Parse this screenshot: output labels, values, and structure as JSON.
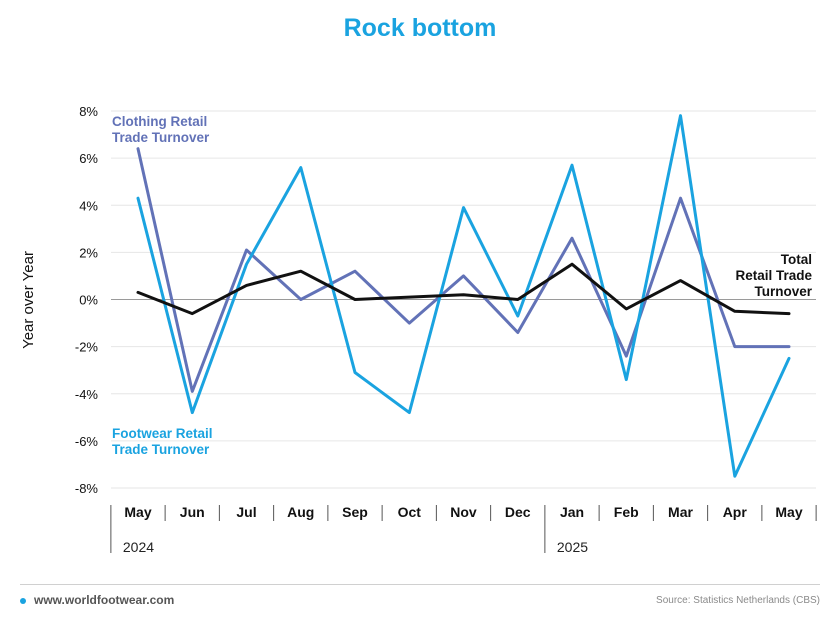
{
  "title": "Rock bottom",
  "footer": {
    "site": "www.worldfootwear.com",
    "source": "Source: Statistics Netherlands (CBS)"
  },
  "colors": {
    "title": "#1aa3e0",
    "clothing": "#6272b7",
    "footwear": "#1aa3e0",
    "total": "#111111",
    "gridline": "#e6e6e6",
    "zeroline": "#9a9a9a",
    "footer_dot": "#1aa3e0"
  },
  "chart_data": {
    "type": "line",
    "ylabel": "Year over Year",
    "xlabel": "",
    "ylim": [
      -8,
      8
    ],
    "yticks": [
      8,
      6,
      4,
      2,
      0,
      -2,
      -4,
      -6,
      -8
    ],
    "ytick_labels": [
      "8%",
      "6%",
      "4%",
      "2%",
      "0%",
      "-2%",
      "-4%",
      "-6%",
      "-8%"
    ],
    "categories": [
      "May",
      "Jun",
      "Jul",
      "Aug",
      "Sep",
      "Oct",
      "Nov",
      "Dec",
      "Jan",
      "Feb",
      "Mar",
      "Apr",
      "May"
    ],
    "years": [
      {
        "label": "2024",
        "start_index": 0
      },
      {
        "label": "2025",
        "start_index": 8
      }
    ],
    "grid": true,
    "series": [
      {
        "name": "Clothing Retail Trade Turnover",
        "label_lines": [
          "Clothing Retail",
          "Trade Turnover"
        ],
        "color": "#6272b7",
        "values": [
          6.4,
          -3.9,
          2.1,
          0.0,
          1.2,
          -1.0,
          1.0,
          -1.4,
          2.6,
          -2.4,
          4.3,
          -2.0,
          -2.0
        ]
      },
      {
        "name": "Footwear Retail Trade Turnover",
        "label_lines": [
          "Footwear Retail",
          "Trade Turnover"
        ],
        "color": "#1aa3e0",
        "values": [
          4.3,
          -4.8,
          1.5,
          5.6,
          -3.1,
          -4.8,
          3.9,
          -0.7,
          5.7,
          -3.4,
          7.8,
          -7.5,
          -2.5
        ]
      },
      {
        "name": "Total Retail Trade Turnover",
        "label_lines": [
          "Total",
          "Retail Trade",
          "Turnover"
        ],
        "color": "#111111",
        "values": [
          0.3,
          -0.6,
          0.6,
          1.2,
          0.0,
          0.1,
          0.2,
          0.0,
          1.5,
          -0.4,
          0.8,
          -0.5,
          -0.6
        ]
      }
    ]
  }
}
